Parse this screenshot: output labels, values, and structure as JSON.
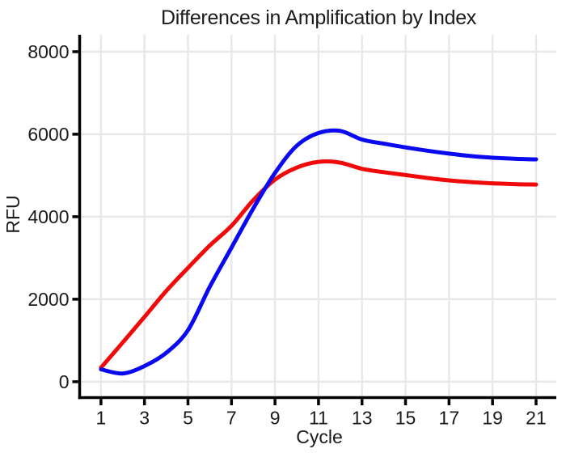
{
  "page": {
    "background_color": "#ffffff"
  },
  "chart_data": {
    "type": "line",
    "title": "Differences in Amplification by Index",
    "xlabel": "Cycle",
    "ylabel": "RFU",
    "x": [
      1,
      2,
      3,
      4,
      5,
      6,
      7,
      8,
      9,
      10,
      11,
      12,
      13,
      14,
      15,
      16,
      17,
      18,
      19,
      20,
      21
    ],
    "series": [
      {
        "name": "blue-curve",
        "color": "#0a0af0",
        "values": [
          300,
          200,
          380,
          700,
          1250,
          2300,
          3250,
          4200,
          5060,
          5720,
          6030,
          6080,
          5870,
          5770,
          5680,
          5600,
          5530,
          5470,
          5430,
          5405,
          5390
        ]
      },
      {
        "name": "red-curve",
        "color": "#f00a0a",
        "values": [
          340,
          950,
          1570,
          2200,
          2760,
          3300,
          3780,
          4400,
          4900,
          5190,
          5330,
          5310,
          5160,
          5080,
          5010,
          4940,
          4880,
          4840,
          4810,
          4790,
          4780
        ]
      }
    ],
    "xticks": [
      1,
      3,
      5,
      7,
      9,
      11,
      13,
      15,
      17,
      19,
      21
    ],
    "yticks": [
      0,
      2000,
      4000,
      6000,
      8000
    ],
    "xlim": [
      0.02,
      21.93
    ],
    "ylim": [
      -385,
      8410
    ],
    "grid": true,
    "legend_position": "none",
    "styles": {
      "grid_color": "#e8e8e8",
      "axis_color": "#000000",
      "text_color": "#1b1b1b",
      "line_width": 5
    }
  }
}
